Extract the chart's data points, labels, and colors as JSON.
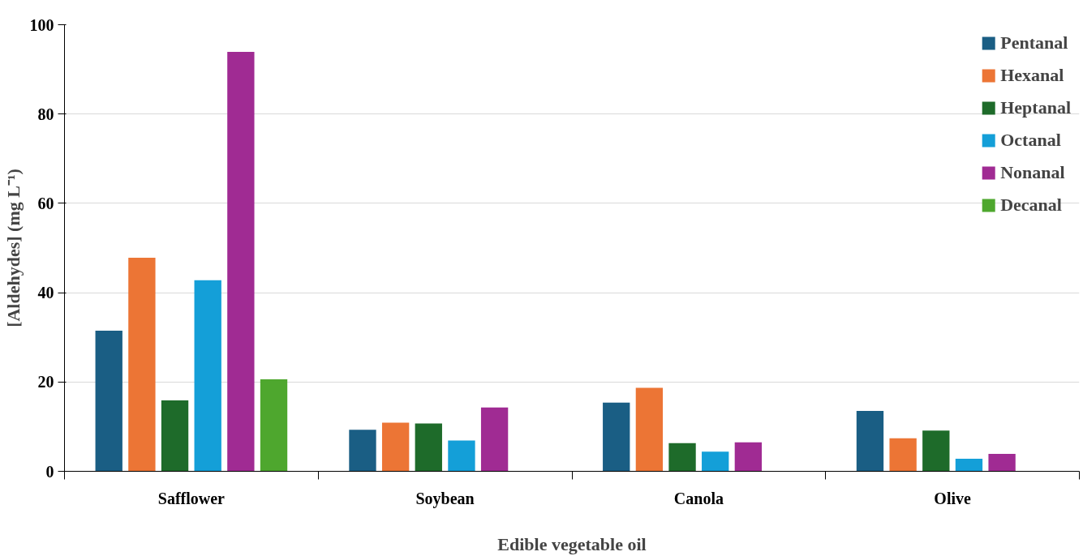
{
  "chart_data": {
    "type": "bar",
    "xlabel": "Edible vegetable oil",
    "ylabel": "[Aldehydes] (mg L⁻¹)",
    "categories": [
      "Safflower",
      "Soybean",
      "Canola",
      "Olive"
    ],
    "series": [
      {
        "name": "Pentanal",
        "color": "#1a5e84",
        "values": [
          31.5,
          9.3,
          15.4,
          13.5
        ]
      },
      {
        "name": "Hexanal",
        "color": "#ec7535",
        "values": [
          47.8,
          10.9,
          18.7,
          7.4
        ]
      },
      {
        "name": "Heptanal",
        "color": "#1e6b2a",
        "values": [
          15.9,
          10.7,
          6.3,
          9.1
        ]
      },
      {
        "name": "Octanal",
        "color": "#149fd8",
        "values": [
          42.8,
          6.9,
          4.4,
          2.8
        ]
      },
      {
        "name": "Nonanal",
        "color": "#a02b93",
        "values": [
          93.9,
          14.3,
          6.5,
          3.9
        ]
      },
      {
        "name": "Decanal",
        "color": "#4ea72e",
        "values": [
          20.6,
          null,
          null,
          null
        ]
      }
    ],
    "ylim": [
      0,
      100
    ],
    "yticks": [
      0,
      20,
      40,
      60,
      80,
      100
    ],
    "grid": "y",
    "legend": "top right"
  }
}
